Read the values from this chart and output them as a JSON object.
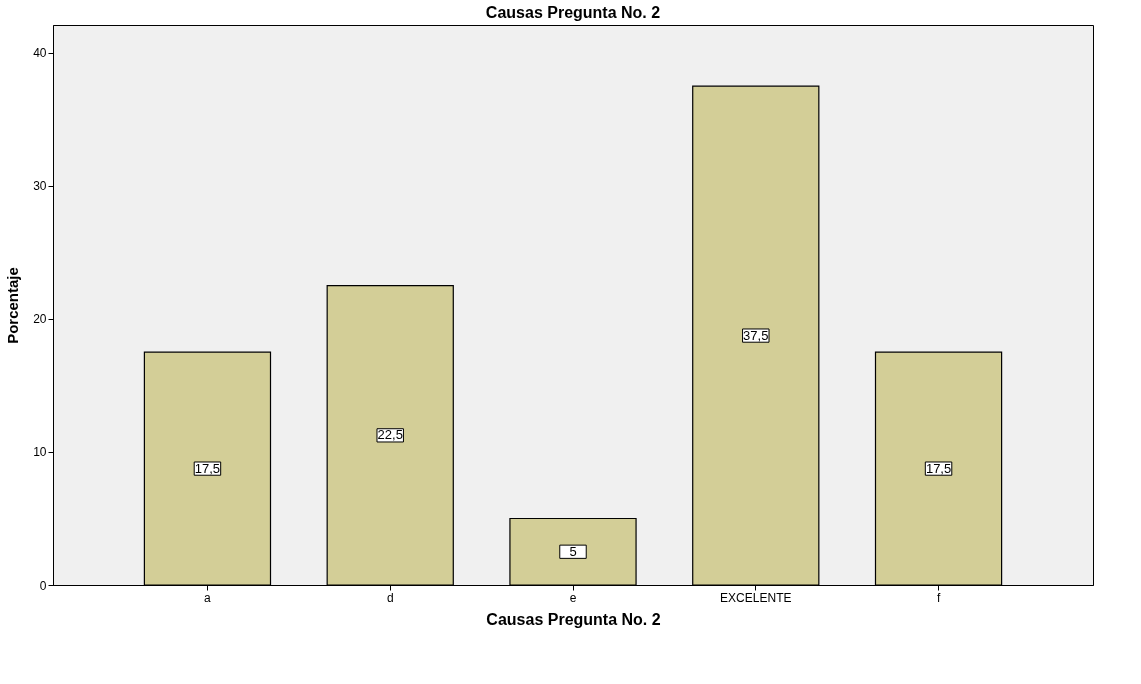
{
  "chart_data": {
    "type": "bar",
    "title": "Causas Pregunta No. 2",
    "xlabel": "Causas Pregunta No. 2",
    "ylabel": "Porcentaje",
    "categories": [
      "a",
      "d",
      "e",
      "EXCELENTE",
      "f"
    ],
    "values": [
      17.5,
      22.5,
      5,
      37.5,
      17.5
    ],
    "value_labels": [
      "17,5",
      "22,5",
      "5",
      "37,5",
      "17,5"
    ],
    "color": "#d3ce97",
    "ylim": [
      0,
      42.1
    ],
    "yticks": [
      0,
      10,
      20,
      30,
      40
    ],
    "grid": false
  }
}
